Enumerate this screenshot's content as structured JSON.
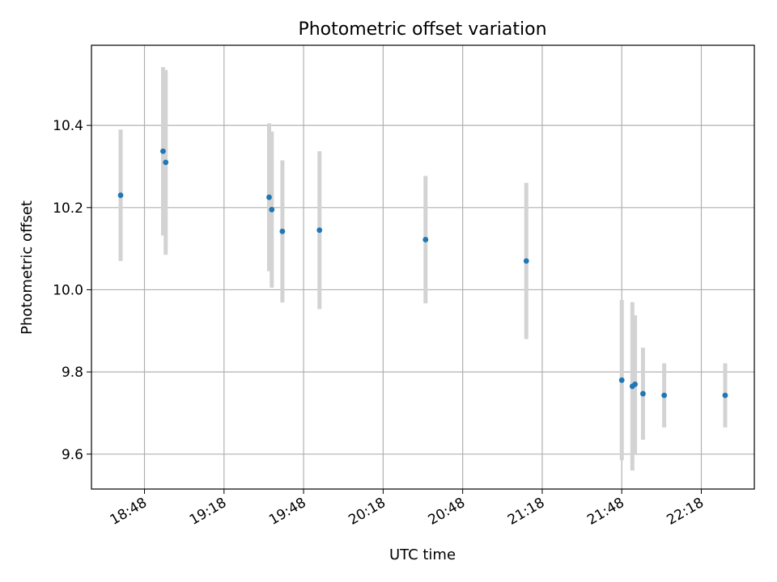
{
  "chart_data": {
    "type": "scatter",
    "title": "Photometric offset variation",
    "xlabel": "UTC time",
    "ylabel": "Photometric offset",
    "xlim": [
      "18:28",
      "22:38"
    ],
    "ylim": [
      9.515,
      10.595
    ],
    "x_ticks": [
      "18:48",
      "19:18",
      "19:48",
      "20:18",
      "20:48",
      "21:18",
      "21:48",
      "22:18"
    ],
    "y_ticks": [
      9.6,
      9.8,
      10.0,
      10.2,
      10.4
    ],
    "y_tick_labels": [
      "9.6",
      "9.8",
      "10.0",
      "10.2",
      "10.4"
    ],
    "grid": true,
    "colors": {
      "point": "#1f77b4",
      "errorbar": "#d3d3d3",
      "grid": "#b0b0b0"
    },
    "points": [
      {
        "x": "18:39",
        "y": 10.23,
        "err": 0.16
      },
      {
        "x": "18:55",
        "y": 10.337,
        "err": 0.205
      },
      {
        "x": "18:56",
        "y": 10.31,
        "err": 0.225
      },
      {
        "x": "19:35",
        "y": 10.225,
        "err": 0.18
      },
      {
        "x": "19:36",
        "y": 10.195,
        "err": 0.19
      },
      {
        "x": "19:40",
        "y": 10.142,
        "err": 0.173
      },
      {
        "x": "19:54",
        "y": 10.145,
        "err": 0.192
      },
      {
        "x": "20:34",
        "y": 10.122,
        "err": 0.155
      },
      {
        "x": "21:12",
        "y": 10.07,
        "err": 0.19
      },
      {
        "x": "21:48",
        "y": 9.78,
        "err": 0.195
      },
      {
        "x": "21:52",
        "y": 9.765,
        "err": 0.205
      },
      {
        "x": "21:53",
        "y": 9.77,
        "err": 0.168
      },
      {
        "x": "21:56",
        "y": 9.747,
        "err": 0.112
      },
      {
        "x": "22:04",
        "y": 9.743,
        "err": 0.078
      },
      {
        "x": "22:27",
        "y": 9.743,
        "err": 0.078
      }
    ]
  }
}
